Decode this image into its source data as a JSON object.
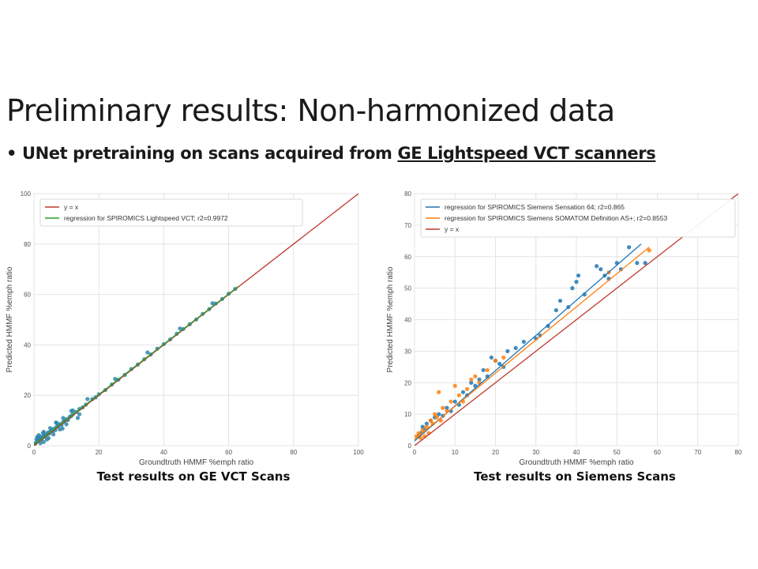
{
  "slide": {
    "title": "Preliminary results: Non-harmonized data",
    "bullet_mark": "•",
    "bullet_plain": "UNet pretraining on scans acquired from",
    "bullet_underlined": "GE Lightspeed VCT scanners"
  },
  "chart_data": [
    {
      "type": "scatter",
      "xlabel": "Groundtruth HMMF %emph ratio",
      "ylabel": "Predicted HMMF %emph ratio",
      "xlim": [
        0,
        100
      ],
      "ylim": [
        0,
        100
      ],
      "xticks": [
        0,
        20,
        40,
        60,
        80,
        100
      ],
      "yticks": [
        0,
        20,
        40,
        60,
        80,
        100
      ],
      "grid": true,
      "legend_position": "top-left",
      "legend": [
        {
          "label": "y = x",
          "color": "#c0392b"
        },
        {
          "label": "regression for SPIROMICS Lightspeed VCT; r2=0.9972",
          "color": "#2ca02c"
        }
      ],
      "lines": [
        {
          "name": "y = x",
          "color": "#c0392b",
          "x": [
            0,
            100
          ],
          "y": [
            0,
            100
          ]
        },
        {
          "name": "regression for SPIROMICS Lightspeed VCT; r2=0.9972",
          "color": "#2ca02c",
          "x": [
            0,
            63
          ],
          "y": [
            0.4,
            63.2
          ]
        }
      ],
      "points": {
        "color": "#2e86ab",
        "x": [
          0.5,
          0.8,
          1,
          1.2,
          1.5,
          1.8,
          2,
          2.3,
          2.6,
          3,
          3.3,
          3.6,
          4,
          4.3,
          4.7,
          5,
          5.4,
          5.8,
          6.2,
          6.6,
          7,
          7.5,
          8,
          8.5,
          9,
          9.5,
          10,
          10.5,
          11,
          11.5,
          12,
          13,
          14,
          15,
          16,
          18,
          19,
          20,
          22,
          24,
          26,
          28,
          30,
          32,
          34,
          36,
          38,
          40,
          42,
          44,
          46,
          48,
          50,
          52,
          54,
          56,
          58,
          60,
          62,
          1,
          2,
          3,
          4,
          5,
          6,
          7,
          8,
          9,
          10,
          12,
          14,
          3,
          1.5,
          0.3,
          2.8,
          4.5,
          6.8,
          8.8,
          11.5,
          13.5,
          16.5,
          25,
          35,
          45,
          55
        ],
        "y": [
          1,
          2.5,
          1.8,
          3,
          2.2,
          2.8,
          3.5,
          2.5,
          3.2,
          4,
          3.6,
          4.2,
          4.5,
          5.2,
          4.8,
          5.6,
          6.1,
          5.7,
          6.8,
          6.2,
          7.5,
          7.8,
          8.6,
          8.2,
          9.4,
          9.8,
          10.5,
          10.2,
          11.4,
          11.8,
          12.5,
          13.4,
          14.6,
          15.2,
          16.3,
          18.5,
          19.2,
          20.4,
          22.1,
          24.3,
          26.2,
          28.1,
          30.4,
          32.2,
          34.3,
          36.2,
          38.5,
          40.3,
          42.2,
          44.4,
          46.3,
          48.2,
          50.1,
          52.3,
          54.2,
          56.4,
          58.2,
          60.3,
          62.2,
          3.5,
          1,
          5.5,
          2.5,
          7,
          4.5,
          9,
          6.5,
          11,
          8.5,
          14,
          12.5,
          1.5,
          4.2,
          0.8,
          5,
          3,
          9.2,
          6.8,
          13.8,
          11,
          18.5,
          26.5,
          37,
          46.5,
          56.5
        ]
      }
    },
    {
      "type": "scatter",
      "xlabel": "Groundtruth HMMF %emph ratio",
      "ylabel": "Predicted HMMF %emph ratio",
      "xlim": [
        0,
        80
      ],
      "ylim": [
        0,
        80
      ],
      "xticks": [
        0,
        10,
        20,
        30,
        40,
        50,
        60,
        70,
        80
      ],
      "yticks": [
        0,
        10,
        20,
        30,
        40,
        50,
        60,
        70,
        80
      ],
      "grid": true,
      "legend_position": "top-left",
      "legend": [
        {
          "label": "regression for SPIROMICS Siemens Sensation 64; r2=0.865",
          "color": "#1f77b4"
        },
        {
          "label": "regression for SPIROMICS Siemens SOMATOM Definition AS+; r2=0.8553",
          "color": "#ff7f0e"
        },
        {
          "label": "y = x",
          "color": "#c0392b"
        }
      ],
      "lines": [
        {
          "name": "regression for SPIROMICS Siemens Sensation 64; r2=0.865",
          "color": "#1f77b4",
          "x": [
            0,
            56
          ],
          "y": [
            1.5,
            64
          ]
        },
        {
          "name": "regression for SPIROMICS Siemens SOMATOM Definition AS+; r2=0.8553",
          "color": "#ff7f0e",
          "x": [
            0,
            58
          ],
          "y": [
            2,
            63
          ]
        },
        {
          "name": "y = x",
          "color": "#c0392b",
          "x": [
            0,
            80
          ],
          "y": [
            0,
            80
          ]
        }
      ],
      "series": [
        {
          "name": "Siemens Sensation 64",
          "color": "#1f77b4",
          "x": [
            1,
            1.5,
            2,
            2.5,
            3,
            4,
            5,
            6,
            7,
            8,
            9,
            10,
            11,
            12,
            13,
            14,
            15,
            16,
            17,
            18,
            19,
            20,
            21,
            22,
            23,
            25,
            27,
            30,
            31,
            33,
            35,
            36,
            38,
            39,
            40,
            40.5,
            42,
            45,
            46,
            47,
            48,
            50,
            51,
            53,
            55,
            57
          ],
          "y": [
            3,
            4,
            6,
            5,
            7,
            8,
            9,
            10,
            9.5,
            12,
            11,
            14,
            13,
            17,
            16,
            20,
            19,
            21,
            24,
            22,
            28,
            27,
            26,
            25,
            30,
            31,
            33,
            34,
            35,
            38,
            43,
            46,
            44,
            50,
            52,
            54,
            48,
            57,
            56,
            54,
            53,
            58,
            56,
            63,
            58,
            58
          ]
        },
        {
          "name": "Siemens SOMATOM Definition AS+",
          "color": "#ff7f0e",
          "x": [
            0.5,
            1,
            1.5,
            2,
            2.5,
            3,
            3.5,
            4,
            4.5,
            5,
            5.5,
            6,
            6.5,
            7,
            8,
            9,
            10,
            11,
            12,
            13,
            14,
            15,
            16,
            18,
            20,
            22,
            48,
            58
          ],
          "y": [
            3,
            4,
            2.5,
            5,
            3,
            6,
            4,
            8,
            7,
            10,
            9,
            17,
            8,
            12,
            11,
            14,
            19,
            16,
            14,
            18,
            21,
            22,
            20,
            24,
            27,
            28,
            55,
            62
          ]
        }
      ]
    }
  ],
  "captions": {
    "left": "Test results on GE VCT Scans",
    "right": "Test results on Siemens Scans"
  }
}
